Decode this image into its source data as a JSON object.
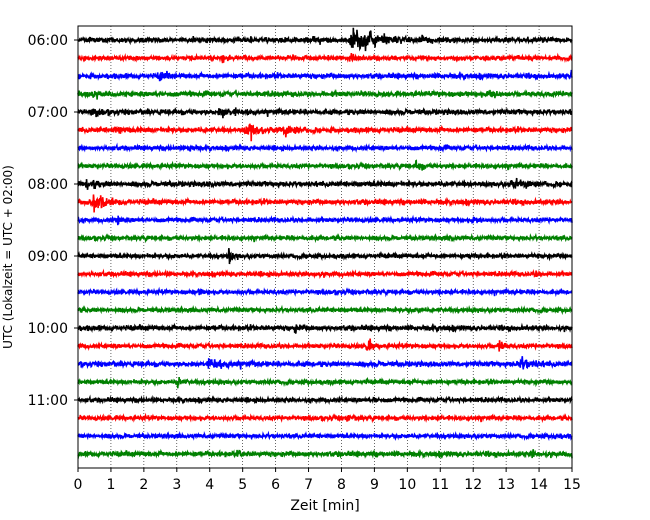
{
  "chart_data": {
    "type": "line",
    "title": "",
    "xlabel": "Zeit  [min]",
    "ylabel": "UTC (Lokalzeit = UTC + 02:00)",
    "xlim": [
      0,
      15
    ],
    "x_ticks": [
      0,
      1,
      2,
      3,
      4,
      5,
      6,
      7,
      8,
      9,
      10,
      11,
      12,
      13,
      14,
      15
    ],
    "x_tick_labels": [
      "0",
      "1",
      "2",
      "3",
      "4",
      "5",
      "6",
      "7",
      "8",
      "9",
      "10",
      "11",
      "12",
      "13",
      "14",
      "15"
    ],
    "y_tick_labels": [
      "06:00",
      "07:00",
      "08:00",
      "09:00",
      "10:00",
      "11:00"
    ],
    "y_tick_trace_index": [
      0,
      4,
      8,
      12,
      16,
      20
    ],
    "grid": {
      "vertical": true,
      "style": "dotted"
    },
    "trace_colors": [
      "#000000",
      "#ff0000",
      "#0000ff",
      "#008000"
    ],
    "series": [
      {
        "start": "06:00",
        "noise": 0.35,
        "events": [
          {
            "t": 8.5,
            "amp": 1.6,
            "dur": 1.6
          },
          {
            "t": 7.0,
            "amp": 0.4,
            "dur": 0.8
          }
        ]
      },
      {
        "start": "06:15",
        "noise": 0.3,
        "events": [
          {
            "t": 4.4,
            "amp": 0.5,
            "dur": 0.2
          },
          {
            "t": 8.3,
            "amp": 0.4,
            "dur": 0.3
          }
        ]
      },
      {
        "start": "06:30",
        "noise": 0.35,
        "events": [
          {
            "t": 2.5,
            "amp": 0.4,
            "dur": 0.5
          },
          {
            "t": 15.0,
            "amp": 0.6,
            "dur": 0.3
          }
        ]
      },
      {
        "start": "06:45",
        "noise": 0.35,
        "events": [
          {
            "t": 0.3,
            "amp": 0.5,
            "dur": 0.6
          },
          {
            "t": 12.5,
            "amp": 0.4,
            "dur": 0.5
          }
        ]
      },
      {
        "start": "07:00",
        "noise": 0.35,
        "events": [
          {
            "t": 4.4,
            "amp": 0.5,
            "dur": 0.8
          },
          {
            "t": 0.5,
            "amp": 0.4,
            "dur": 0.4
          }
        ]
      },
      {
        "start": "07:15",
        "noise": 0.35,
        "events": [
          {
            "t": 5.2,
            "amp": 1.0,
            "dur": 0.8
          },
          {
            "t": 6.3,
            "amp": 0.6,
            "dur": 0.8
          },
          {
            "t": 1.2,
            "amp": 0.4,
            "dur": 0.4
          }
        ]
      },
      {
        "start": "07:30",
        "noise": 0.3,
        "events": [
          {
            "t": 3.4,
            "amp": 0.4,
            "dur": 0.3
          },
          {
            "t": 11.0,
            "amp": 0.3,
            "dur": 0.3
          }
        ]
      },
      {
        "start": "07:45",
        "noise": 0.3,
        "events": [
          {
            "t": 10.3,
            "amp": 0.9,
            "dur": 0.3
          }
        ]
      },
      {
        "start": "08:00",
        "noise": 0.35,
        "events": [
          {
            "t": 0.3,
            "amp": 0.6,
            "dur": 0.6
          },
          {
            "t": 13.3,
            "amp": 0.6,
            "dur": 1.0
          },
          {
            "t": 4.0,
            "amp": 0.3,
            "dur": 0.2
          }
        ]
      },
      {
        "start": "08:15",
        "noise": 0.35,
        "events": [
          {
            "t": 0.5,
            "amp": 0.9,
            "dur": 1.0
          }
        ]
      },
      {
        "start": "08:30",
        "noise": 0.3,
        "events": [
          {
            "t": 1.2,
            "amp": 0.4,
            "dur": 0.4
          },
          {
            "t": 12.0,
            "amp": 0.3,
            "dur": 0.3
          }
        ]
      },
      {
        "start": "08:45",
        "noise": 0.3,
        "events": [
          {
            "t": 11.3,
            "amp": 0.3,
            "dur": 0.3
          }
        ]
      },
      {
        "start": "09:00",
        "noise": 0.3,
        "events": [
          {
            "t": 4.6,
            "amp": 1.1,
            "dur": 0.3
          }
        ]
      },
      {
        "start": "09:15",
        "noise": 0.3,
        "events": [
          {
            "t": 7.2,
            "amp": 0.4,
            "dur": 0.3
          },
          {
            "t": 13.9,
            "amp": 0.3,
            "dur": 0.3
          }
        ]
      },
      {
        "start": "09:30",
        "noise": 0.3,
        "events": [
          {
            "t": 3.7,
            "amp": 0.4,
            "dur": 0.3
          }
        ]
      },
      {
        "start": "09:45",
        "noise": 0.3,
        "events": [
          {
            "t": 10.3,
            "amp": 0.3,
            "dur": 0.3
          }
        ]
      },
      {
        "start": "10:00",
        "noise": 0.35,
        "events": [
          {
            "t": 6.6,
            "amp": 0.4,
            "dur": 0.3
          }
        ]
      },
      {
        "start": "10:15",
        "noise": 0.3,
        "events": [
          {
            "t": 8.8,
            "amp": 1.0,
            "dur": 0.3
          },
          {
            "t": 12.8,
            "amp": 0.9,
            "dur": 0.3
          }
        ]
      },
      {
        "start": "10:30",
        "noise": 0.35,
        "events": [
          {
            "t": 4.1,
            "amp": 0.6,
            "dur": 1.0
          },
          {
            "t": 13.5,
            "amp": 0.7,
            "dur": 0.8
          }
        ]
      },
      {
        "start": "10:45",
        "noise": 0.3,
        "events": [
          {
            "t": 3.0,
            "amp": 0.7,
            "dur": 0.3
          }
        ]
      },
      {
        "start": "11:00",
        "noise": 0.3,
        "events": [
          {
            "t": 9.0,
            "amp": 0.3,
            "dur": 0.3
          }
        ]
      },
      {
        "start": "11:15",
        "noise": 0.3,
        "events": [
          {
            "t": 8.2,
            "amp": 0.4,
            "dur": 0.3
          }
        ]
      },
      {
        "start": "11:30",
        "noise": 0.3,
        "events": [
          {
            "t": 14.5,
            "amp": 0.3,
            "dur": 0.3
          }
        ]
      },
      {
        "start": "11:45",
        "noise": 0.35,
        "events": [
          {
            "t": 4.9,
            "amp": 0.4,
            "dur": 0.3
          },
          {
            "t": 13.8,
            "amp": 0.4,
            "dur": 0.3
          },
          {
            "t": 15.0,
            "amp": 0.4,
            "dur": 0.3
          }
        ]
      }
    ]
  }
}
